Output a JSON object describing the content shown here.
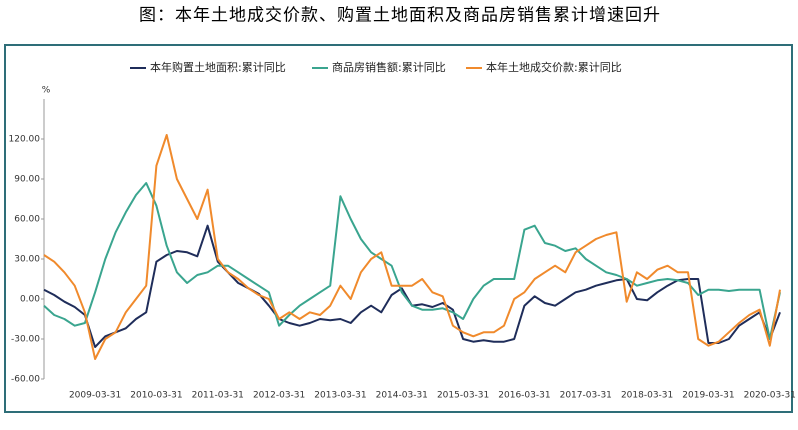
{
  "chart_data": {
    "type": "line",
    "title": "图：本年土地成交价款、购置土地面积及商品房销售累计增速回升",
    "y_unit": "%",
    "categories": [
      null,
      null,
      null,
      null,
      null,
      "2009-03-31",
      null,
      null,
      null,
      null,
      null,
      "2010-03-31",
      null,
      null,
      null,
      null,
      null,
      "2011-03-31",
      null,
      null,
      null,
      null,
      null,
      "2012-03-31",
      null,
      null,
      null,
      null,
      null,
      "2013-03-31",
      null,
      null,
      null,
      null,
      null,
      "2014-03-31",
      null,
      null,
      null,
      null,
      null,
      "2015-03-31",
      null,
      null,
      null,
      null,
      null,
      "2016-03-31",
      null,
      null,
      null,
      null,
      null,
      "2017-03-31",
      null,
      null,
      null,
      null,
      null,
      "2018-03-31",
      null,
      null,
      null,
      null,
      null,
      "2019-03-31",
      null,
      null,
      null,
      null,
      null,
      "2020-03-31",
      null
    ],
    "series": [
      {
        "name": "本年购置土地面积:累计同比",
        "color": "#1f2d5a",
        "values": [
          7,
          3,
          -2,
          -6,
          -12,
          -36,
          -28,
          -25,
          -22,
          -15,
          -10,
          28,
          33,
          36,
          35,
          32,
          55,
          28,
          20,
          12,
          8,
          4,
          -5,
          -15,
          -18,
          -20,
          -18,
          -15,
          -16,
          -15,
          -18,
          -10,
          -5,
          -10,
          3,
          8,
          -5,
          -4,
          -6,
          -3,
          -8,
          -30,
          -32,
          -31,
          -32,
          -32,
          -30,
          -5,
          2,
          -3,
          -5,
          0,
          5,
          7,
          10,
          12,
          14,
          15,
          0,
          -1,
          5,
          10,
          14,
          15,
          15,
          -33,
          -33,
          -30,
          -20,
          -15,
          -10,
          -30,
          -10
        ]
      },
      {
        "name": "商品房销售额:累计同比",
        "color": "#3aa58f",
        "values": [
          -5,
          -12,
          -15,
          -20,
          -18,
          5,
          30,
          50,
          65,
          78,
          87,
          70,
          40,
          20,
          12,
          18,
          20,
          25,
          25,
          20,
          15,
          10,
          5,
          -20,
          -12,
          -5,
          0,
          5,
          10,
          77,
          60,
          45,
          35,
          30,
          25,
          5,
          -5,
          -8,
          -8,
          -7,
          -10,
          -15,
          0,
          10,
          15,
          15,
          15,
          52,
          55,
          42,
          40,
          36,
          38,
          30,
          25,
          20,
          18,
          15,
          10,
          12,
          14,
          15,
          14,
          12,
          3,
          7,
          7,
          6,
          7,
          7,
          7,
          -30,
          5
        ]
      },
      {
        "name": "本年土地成交价款:累计同比",
        "color": "#f08a2c",
        "values": [
          33,
          28,
          20,
          10,
          -10,
          -45,
          -30,
          -25,
          -10,
          0,
          10,
          100,
          123,
          90,
          75,
          60,
          82,
          30,
          20,
          15,
          8,
          3,
          0,
          -15,
          -10,
          -15,
          -10,
          -12,
          -5,
          10,
          0,
          20,
          30,
          35,
          10,
          10,
          10,
          15,
          5,
          2,
          -20,
          -25,
          -28,
          -25,
          -25,
          -20,
          0,
          5,
          15,
          20,
          25,
          20,
          35,
          40,
          45,
          48,
          50,
          -2,
          20,
          15,
          22,
          25,
          20,
          20,
          -30,
          -35,
          -32,
          -25,
          -18,
          -12,
          -8,
          -35,
          7
        ]
      }
    ],
    "ylim": [
      -60,
      150
    ],
    "yticks": [
      {
        "value": -60,
        "label": "-60.00"
      },
      {
        "value": -30,
        "label": "-30.00"
      },
      {
        "value": 0,
        "label": "0.00"
      },
      {
        "value": 30,
        "label": "30.00"
      },
      {
        "value": 60,
        "label": "60.00"
      },
      {
        "value": 90,
        "label": "90.00"
      },
      {
        "value": 120,
        "label": "120.00"
      }
    ],
    "grid": false
  }
}
